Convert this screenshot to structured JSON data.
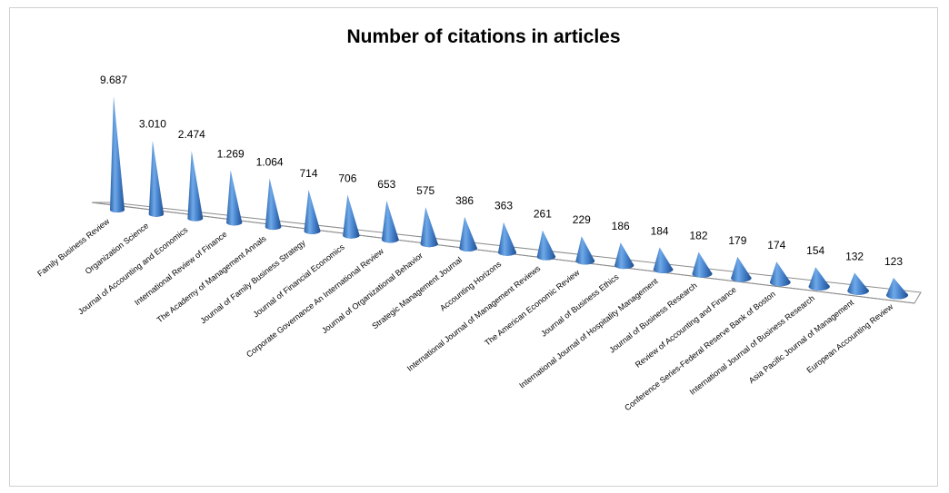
{
  "chart_data": {
    "type": "bar",
    "style": "3d-cone",
    "title": "Number of citations in articles",
    "xlabel": "",
    "ylabel": "",
    "ylim": [
      0,
      9687
    ],
    "legend": "none",
    "grid": false,
    "bar_color": "#4F8FD6",
    "categories": [
      "Family Business Review",
      "Organization Science",
      "Journal of Accounting and Economics",
      "International Review of Finance",
      "The Academy of Management Annals",
      "Journal of Family Business Strategy",
      "Journal of Financial Economics",
      "Corporate Governance An International Review",
      "Journal of Organizational Behavior",
      "Strategic Management Journal",
      "Accounting Horizons",
      "International Journal of Management Reviews",
      "The American Economic Review",
      "Journal of Business Ethics",
      "International Journal of Hospitality Management",
      "Journal of Business Research",
      "Review of Accounting and Finance",
      "Conference Series-Federal Reserve Bank of Boston",
      "International Journal of Business Research",
      "Asia Pacific Journal of Management",
      "European Accounting Review"
    ],
    "values": [
      9687,
      3010,
      2474,
      1269,
      1064,
      714,
      706,
      653,
      575,
      386,
      363,
      261,
      229,
      186,
      184,
      182,
      179,
      174,
      154,
      132,
      123
    ],
    "value_labels": [
      "9.687",
      "3.010",
      "2.474",
      "1.269",
      "1.064",
      "714",
      "706",
      "653",
      "575",
      "386",
      "363",
      "261",
      "229",
      "186",
      "184",
      "182",
      "179",
      "174",
      "154",
      "132",
      "123"
    ]
  }
}
